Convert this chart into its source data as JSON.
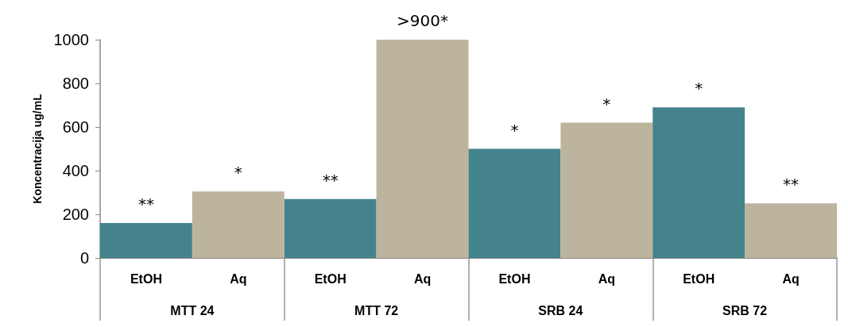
{
  "chart_data": {
    "type": "bar",
    "ylabel": "Koncentracija ug/mL",
    "categories": [
      "EtOH",
      "Aq",
      "EtOH",
      "Aq",
      "EtOH",
      "Aq",
      "EtOH",
      "Aq"
    ],
    "values": [
      160,
      305,
      270,
      1000,
      500,
      620,
      690,
      250
    ],
    "colors": [
      "#44838b",
      "#bdb49e",
      "#44838b",
      "#bdb49e",
      "#44838b",
      "#bdb49e",
      "#44838b",
      "#bdb49e"
    ],
    "value_labels": [
      "**",
      "*",
      "**",
      ">900*",
      "*",
      "*",
      "*",
      "**"
    ],
    "annotations": [
      "MTT 24",
      "MTT 72",
      "SRB 24",
      "SRB 72"
    ],
    "ylim": [
      0,
      1000
    ],
    "yticks": [
      0,
      200,
      400,
      600,
      800,
      1000
    ],
    "grid": false
  }
}
